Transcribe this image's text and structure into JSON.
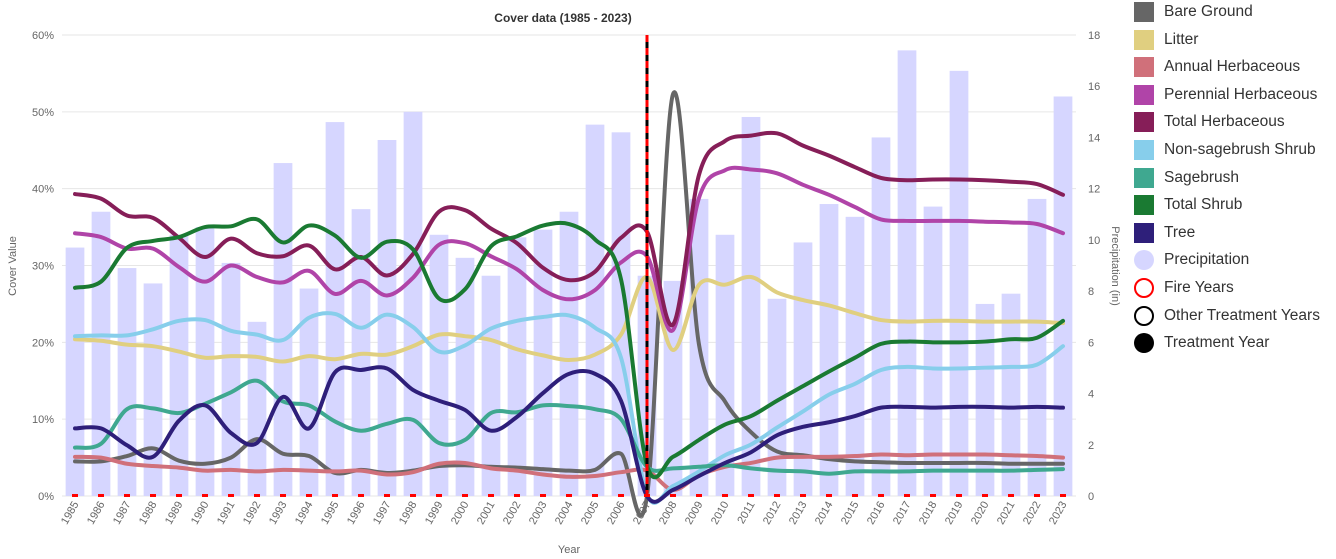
{
  "chart_data": {
    "type": "line",
    "title": "Cover data (1985 - 2023)",
    "xlabel": "Year",
    "ylabel": "Cover Value",
    "y2label": "Precipitation (in)",
    "ylim": [
      0,
      60
    ],
    "y2lim": [
      0,
      18
    ],
    "y_ticks": [
      "0%",
      "10%",
      "20%",
      "30%",
      "40%",
      "50%",
      "60%"
    ],
    "y2_ticks": [
      "0",
      "2",
      "4",
      "6",
      "8",
      "10",
      "12",
      "14",
      "16",
      "18"
    ],
    "x": [
      "1985",
      "1986",
      "1987",
      "1988",
      "1989",
      "1990",
      "1991",
      "1992",
      "1993",
      "1994",
      "1995",
      "1996",
      "1997",
      "1998",
      "1999",
      "2000",
      "2001",
      "2002",
      "2003",
      "2004",
      "2005",
      "2006",
      "2007",
      "2008",
      "2009",
      "2010",
      "2011",
      "2012",
      "2013",
      "2014",
      "2015",
      "2016",
      "2017",
      "2018",
      "2019",
      "2020",
      "2021",
      "2022",
      "2023"
    ],
    "treatment_year": "2007",
    "fire_years": [
      "1985",
      "1986",
      "1987",
      "1988",
      "1989",
      "1990",
      "1991",
      "1992",
      "1993",
      "1994",
      "1995",
      "1996",
      "1997",
      "1998",
      "1999",
      "2000",
      "2001",
      "2002",
      "2003",
      "2004",
      "2005",
      "2006",
      "2007",
      "2008",
      "2009",
      "2010",
      "2011",
      "2012",
      "2013",
      "2014",
      "2015",
      "2016",
      "2017",
      "2018",
      "2019",
      "2020",
      "2021",
      "2022",
      "2023"
    ],
    "precipitation": {
      "name": "Precipitation",
      "color": "#d6d6ff",
      "values": [
        9.7,
        11.1,
        8.9,
        8.3,
        10.2,
        10.5,
        9.1,
        6.8,
        13.0,
        8.1,
        14.6,
        11.2,
        13.9,
        15.0,
        10.2,
        9.3,
        8.6,
        10.1,
        10.4,
        11.1,
        14.5,
        14.2,
        8.6,
        8.4,
        11.6,
        10.2,
        14.8,
        7.7,
        9.9,
        11.4,
        10.9,
        14.0,
        17.4,
        11.3,
        16.6,
        7.5,
        7.9,
        11.6,
        15.6
      ]
    },
    "series": [
      {
        "name": "Bare Ground",
        "color": "#666666",
        "values": [
          4.5,
          4.5,
          5.2,
          6.2,
          4.6,
          4.2,
          5.0,
          7.4,
          5.5,
          5.2,
          3.0,
          3.4,
          3.0,
          3.3,
          3.9,
          4.0,
          3.8,
          3.7,
          3.5,
          3.3,
          3.4,
          5.5,
          0.0,
          52.3,
          19.7,
          12.3,
          8.3,
          5.8,
          5.3,
          4.8,
          4.5,
          4.4,
          4.3,
          4.3,
          4.3,
          4.3,
          4.2,
          4.2,
          4.2
        ]
      },
      {
        "name": "Litter",
        "color": "#e0cf80",
        "values": [
          20.4,
          20.2,
          19.7,
          19.5,
          18.8,
          18.0,
          18.2,
          18.1,
          17.5,
          18.2,
          17.8,
          18.5,
          18.4,
          19.5,
          21.0,
          20.8,
          20.3,
          19.1,
          18.3,
          17.7,
          18.4,
          21.0,
          28.5,
          19.0,
          27.5,
          27.5,
          28.5,
          26.5,
          25.5,
          24.8,
          23.8,
          22.9,
          22.7,
          22.8,
          22.8,
          22.7,
          22.7,
          22.7,
          22.5
        ]
      },
      {
        "name": "Annual Herbaceous",
        "color": "#d0707a",
        "values": [
          5.1,
          5.0,
          4.2,
          3.9,
          3.7,
          3.3,
          3.4,
          3.2,
          3.4,
          3.3,
          3.2,
          3.3,
          2.8,
          3.1,
          4.2,
          4.3,
          3.6,
          3.3,
          2.8,
          2.5,
          2.6,
          3.1,
          3.3,
          0.8,
          2.7,
          3.8,
          4.3,
          5.0,
          5.1,
          5.1,
          5.2,
          5.4,
          5.3,
          5.4,
          5.4,
          5.4,
          5.3,
          5.2,
          5.0
        ]
      },
      {
        "name": "Perennial Herbaceous",
        "color": "#b044a8",
        "values": [
          34.2,
          33.7,
          32.2,
          32.2,
          29.8,
          27.9,
          30.0,
          28.5,
          27.8,
          29.3,
          26.3,
          28.0,
          26.1,
          28.4,
          32.7,
          32.9,
          31.2,
          29.5,
          26.8,
          25.6,
          26.8,
          30.4,
          31.2,
          21.6,
          38.8,
          42.4,
          42.5,
          42.0,
          40.5,
          39.2,
          37.6,
          36.0,
          35.8,
          35.8,
          35.8,
          35.7,
          35.6,
          35.4,
          34.2
        ]
      },
      {
        "name": "Total Herbaceous",
        "color": "#861e58",
        "values": [
          39.3,
          38.7,
          36.5,
          36.2,
          33.6,
          31.1,
          33.5,
          31.6,
          31.2,
          32.6,
          29.5,
          31.1,
          28.7,
          31.5,
          37.0,
          37.2,
          34.8,
          32.9,
          29.7,
          28.1,
          29.2,
          33.6,
          34.4,
          22.3,
          41.8,
          46.2,
          46.9,
          47.2,
          45.6,
          44.3,
          42.8,
          41.4,
          41.1,
          41.2,
          41.2,
          41.1,
          40.9,
          40.6,
          39.2
        ]
      },
      {
        "name": "Non-sagebrush Shrub",
        "color": "#87ceeb",
        "values": [
          20.8,
          20.9,
          20.9,
          21.7,
          22.8,
          22.9,
          21.5,
          21.0,
          20.3,
          23.2,
          23.7,
          21.9,
          23.6,
          22.0,
          18.8,
          19.6,
          21.8,
          22.8,
          23.3,
          23.5,
          21.9,
          18.0,
          0.2,
          1.3,
          3.2,
          5.3,
          6.7,
          8.9,
          11.0,
          13.2,
          14.6,
          16.4,
          16.8,
          16.6,
          16.6,
          16.7,
          16.8,
          17.1,
          19.5
        ]
      },
      {
        "name": "Sagebrush",
        "color": "#3fa890",
        "values": [
          6.3,
          6.8,
          11.3,
          11.4,
          10.8,
          12.0,
          13.5,
          15.0,
          12.3,
          11.8,
          9.7,
          8.5,
          9.4,
          9.9,
          6.9,
          7.3,
          10.8,
          10.9,
          11.8,
          11.7,
          11.3,
          10.0,
          3.8,
          3.6,
          3.8,
          4.0,
          3.6,
          3.3,
          3.2,
          2.9,
          3.2,
          3.2,
          3.2,
          3.3,
          3.3,
          3.3,
          3.3,
          3.4,
          3.5
        ]
      },
      {
        "name": "Total Shrub",
        "color": "#1a7a32",
        "values": [
          27.1,
          27.9,
          32.3,
          33.2,
          33.7,
          35.0,
          35.1,
          36.0,
          33.0,
          35.2,
          33.9,
          31.0,
          33.1,
          32.1,
          25.7,
          26.9,
          32.5,
          33.8,
          35.2,
          35.4,
          33.4,
          28.2,
          4.0,
          5.1,
          7.3,
          9.3,
          10.4,
          12.4,
          14.3,
          16.2,
          18.0,
          19.8,
          20.1,
          20.0,
          20.0,
          20.1,
          20.4,
          20.6,
          22.8
        ]
      },
      {
        "name": "Tree",
        "color": "#2e1f7a",
        "values": [
          8.8,
          8.8,
          6.6,
          5.1,
          9.8,
          11.8,
          8.2,
          6.9,
          12.9,
          8.8,
          16.1,
          16.4,
          16.6,
          13.8,
          12.4,
          11.2,
          8.5,
          10.3,
          13.4,
          15.9,
          15.9,
          12.4,
          0.0,
          0.8,
          2.6,
          4.3,
          5.7,
          7.9,
          9.0,
          9.6,
          10.4,
          11.5,
          11.6,
          11.5,
          11.6,
          11.6,
          11.5,
          11.6,
          11.5
        ]
      }
    ]
  },
  "legend": {
    "items": [
      {
        "label": "Bare Ground",
        "kind": "square",
        "color": "#666666"
      },
      {
        "label": "Litter",
        "kind": "square",
        "color": "#e0cf80"
      },
      {
        "label": "Annual Herbaceous",
        "kind": "square",
        "color": "#d0707a"
      },
      {
        "label": "Perennial Herbaceous",
        "kind": "square",
        "color": "#b044a8"
      },
      {
        "label": "Total Herbaceous",
        "kind": "square",
        "color": "#861e58"
      },
      {
        "label": "Non-sagebrush Shrub",
        "kind": "square",
        "color": "#87ceeb"
      },
      {
        "label": "Sagebrush",
        "kind": "square",
        "color": "#3fa890"
      },
      {
        "label": "Total Shrub",
        "kind": "square",
        "color": "#1a7a32"
      },
      {
        "label": "Tree",
        "kind": "square",
        "color": "#2e1f7a"
      },
      {
        "label": "Precipitation",
        "kind": "circle-fill",
        "color": "#d6d6ff"
      },
      {
        "label": "Fire Years",
        "kind": "circle-ring",
        "color": "#ff0000"
      },
      {
        "label": "Other Treatment Years",
        "kind": "circle-ring",
        "color": "#000000"
      },
      {
        "label": "Treatment Year",
        "kind": "circle-fill",
        "color": "#000000"
      }
    ]
  }
}
